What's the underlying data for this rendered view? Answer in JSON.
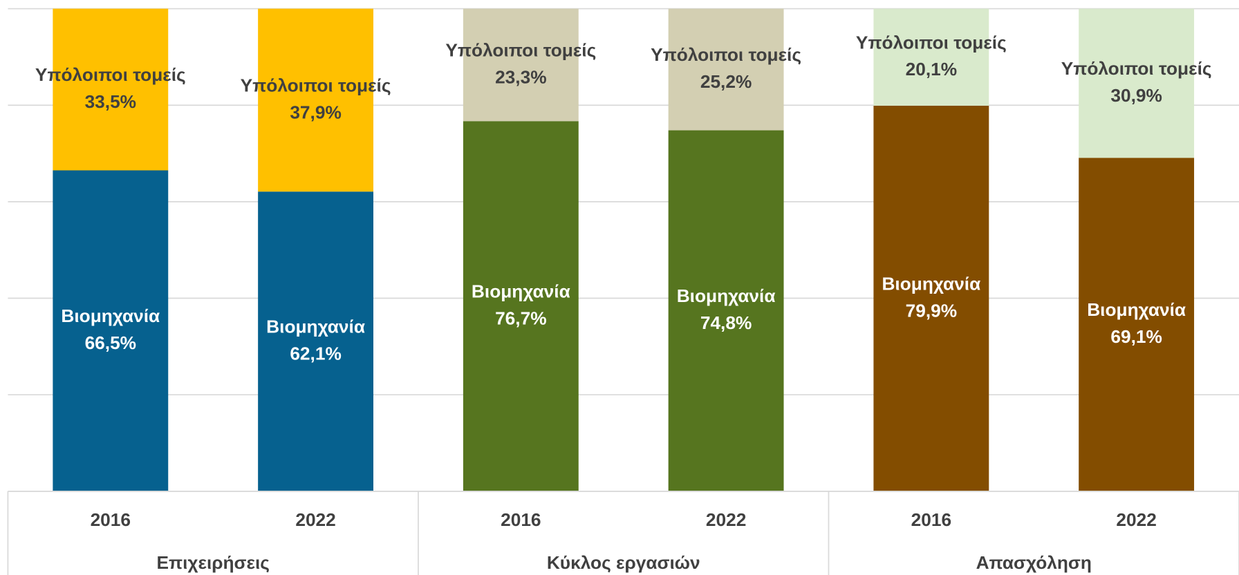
{
  "chart_data": {
    "type": "bar",
    "stacked": true,
    "groups": [
      "Επιχειρήσεις",
      "Κύκλος εργασιών",
      "Απασχόληση"
    ],
    "categories": [
      "2016",
      "2022",
      "2016",
      "2022",
      "2016",
      "2022"
    ],
    "series": [
      {
        "name": "Βιομηχανία",
        "colors": [
          "#06618F",
          "#06618F",
          "#56751F",
          "#56751F",
          "#834D00",
          "#834D00"
        ],
        "values": [
          66.5,
          62.1,
          76.7,
          74.8,
          79.9,
          69.1
        ],
        "value_labels": [
          "66,5%",
          "62,1%",
          "76,7%",
          "74,8%",
          "79,9%",
          "69,1%"
        ]
      },
      {
        "name": "Υπόλοιποι τομείς",
        "colors": [
          "#FFC000",
          "#FFC000",
          "#D3CFB2",
          "#D3CFB2",
          "#D9EACC",
          "#D9EACC"
        ],
        "values": [
          33.5,
          37.9,
          23.3,
          25.2,
          20.1,
          30.9
        ],
        "value_labels": [
          "33,5%",
          "37,9%",
          "23,3%",
          "25,2%",
          "20,1%",
          "30,9%"
        ]
      }
    ],
    "ylim": [
      0,
      100
    ],
    "yticks": [
      0,
      20,
      40,
      60,
      80,
      100
    ],
    "grid": true
  }
}
